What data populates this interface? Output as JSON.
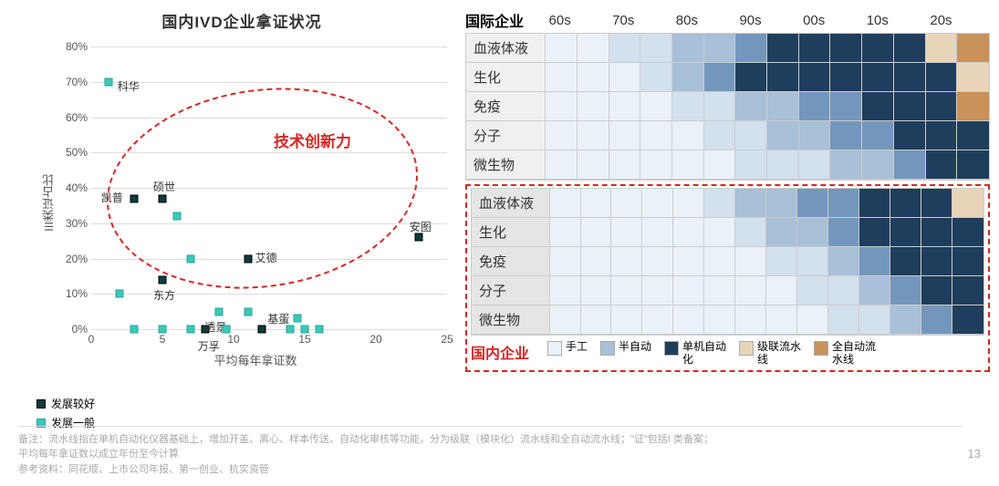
{
  "scatter": {
    "title": "国内IVD企业拿证状况",
    "x_label": "平均每年拿证数",
    "y_label": "III类证占比",
    "xlim": [
      0,
      25
    ],
    "ylim": [
      0,
      80
    ],
    "xtick_step": 5,
    "ytick_step": 10,
    "y_tick_suffix": "%",
    "grid_color": "#dddddd",
    "annotation": "技术创新力",
    "annotation_color": "#d92525",
    "ellipse": {
      "cx_pct": 48,
      "cy_pct": 50,
      "rx_pct": 44,
      "ry_pct": 35
    },
    "series": [
      {
        "name": "发展较好",
        "shape": "square",
        "fill": "#0d3d3d",
        "border": "#000000",
        "points": [
          {
            "x": 3,
            "y": 37,
            "label": "凯普",
            "dx": -36,
            "dy": -10
          },
          {
            "x": 5,
            "y": 37,
            "label": "硕世",
            "dx": -10,
            "dy": -22
          },
          {
            "x": 5,
            "y": 14,
            "label": "东方",
            "dx": -10,
            "dy": 8
          },
          {
            "x": 8,
            "y": 0,
            "label": "万孚",
            "dx": -8,
            "dy": 10
          },
          {
            "x": 11,
            "y": 20,
            "label": "艾德",
            "dx": 8,
            "dy": -10
          },
          {
            "x": 12,
            "y": 0,
            "label": "基蛋",
            "dx": 6,
            "dy": -20
          },
          {
            "x": 23,
            "y": 26,
            "label": "安图",
            "dx": -10,
            "dy": -20
          }
        ]
      },
      {
        "name": "发展一般",
        "shape": "square",
        "fill": "#3ec7b8",
        "border": "#1fa99a",
        "points": [
          {
            "x": 1.2,
            "y": 70,
            "label": "科华",
            "dx": 10,
            "dy": -4
          },
          {
            "x": 2,
            "y": 10
          },
          {
            "x": 3,
            "y": 0
          },
          {
            "x": 5,
            "y": 0
          },
          {
            "x": 6,
            "y": 32
          },
          {
            "x": 7,
            "y": 20
          },
          {
            "x": 7,
            "y": 0
          },
          {
            "x": 9,
            "y": 5,
            "label": "透景",
            "dx": -16,
            "dy": 8
          },
          {
            "x": 9.5,
            "y": 0
          },
          {
            "x": 11,
            "y": 5
          },
          {
            "x": 14,
            "y": 0
          },
          {
            "x": 14.5,
            "y": 3
          },
          {
            "x": 15,
            "y": 0
          },
          {
            "x": 16,
            "y": 0
          }
        ]
      }
    ]
  },
  "heatmap": {
    "intl_title": "国际企业",
    "dom_title": "国内企业",
    "decades": [
      "60s",
      "70s",
      "80s",
      "90s",
      "00s",
      "10s",
      "20s"
    ],
    "cells_per_decade": 2,
    "row_labels": [
      "血液体液",
      "生化",
      "免疫",
      "分子",
      "微生物"
    ],
    "palette": {
      "1": "#eaf1f8",
      "2": "#d3e0ed",
      "3": "#a8c0d8",
      "4": "#7397bc",
      "5": "#1f3d5c",
      "6": "#e8d4b8",
      "7": "#c9925a"
    },
    "intl": [
      [
        1,
        1,
        2,
        2,
        3,
        3,
        4,
        5,
        5,
        5,
        5,
        5,
        6,
        7
      ],
      [
        1,
        1,
        1,
        2,
        3,
        4,
        5,
        5,
        5,
        5,
        5,
        5,
        5,
        6
      ],
      [
        1,
        1,
        1,
        1,
        2,
        2,
        3,
        3,
        4,
        4,
        5,
        5,
        5,
        7
      ],
      [
        1,
        1,
        1,
        1,
        1,
        2,
        2,
        3,
        3,
        4,
        4,
        5,
        5,
        5
      ],
      [
        1,
        1,
        1,
        1,
        1,
        1,
        2,
        2,
        2,
        3,
        3,
        4,
        5,
        5
      ]
    ],
    "dom": [
      [
        1,
        1,
        1,
        1,
        1,
        2,
        3,
        3,
        4,
        4,
        5,
        5,
        5,
        6
      ],
      [
        1,
        1,
        1,
        1,
        1,
        1,
        2,
        3,
        3,
        4,
        5,
        5,
        5,
        5
      ],
      [
        1,
        1,
        1,
        1,
        1,
        1,
        1,
        2,
        2,
        3,
        4,
        5,
        5,
        5
      ],
      [
        1,
        1,
        1,
        1,
        1,
        1,
        1,
        1,
        2,
        2,
        3,
        4,
        5,
        5
      ],
      [
        1,
        1,
        1,
        1,
        1,
        1,
        1,
        1,
        1,
        2,
        2,
        3,
        4,
        5
      ]
    ],
    "legend": [
      {
        "color": "#eaf1f8",
        "label": "手工"
      },
      {
        "color": "#a8c0d8",
        "label": "半自动"
      },
      {
        "color": "#1f3d5c",
        "label": "单机自动化"
      },
      {
        "color": "#e8d4b8",
        "label": "级联流水线"
      },
      {
        "color": "#c9925a",
        "label": "全自动流水线"
      }
    ]
  },
  "footnote": {
    "line1": "备注：流水线指在单机自动化仪器基础上，增加开盖、离心、样本传送、自动化审核等功能，分为级联（模块化）流水线和全自动流水线；\"证\"包括I 类备案；",
    "line2": "平均每年拿证数以成立年份至今计算",
    "line3": "参考资料：同花顺、上市公司年报、第一创业、杭实资管"
  },
  "page_number": "13"
}
